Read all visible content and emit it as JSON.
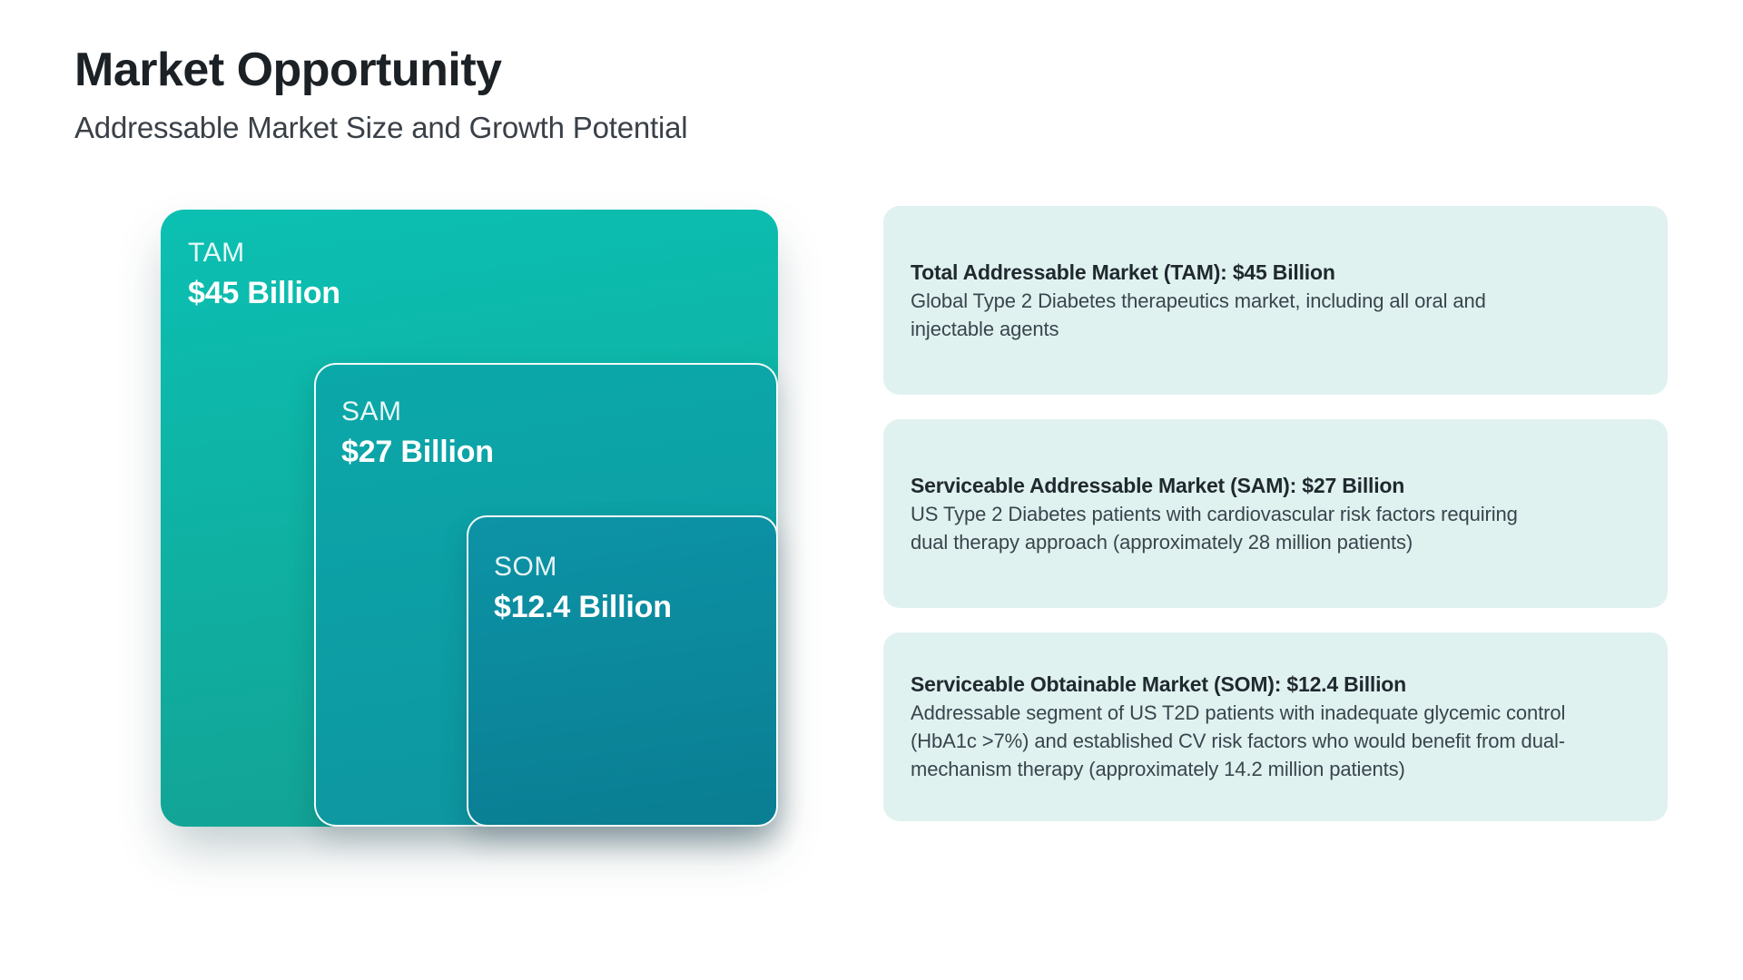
{
  "header": {
    "title": "Market Opportunity",
    "subtitle": "Addressable Market Size and Growth Potential"
  },
  "colors": {
    "tam_top": "#0bc0b2",
    "tam_bottom": "#13a193",
    "sam_top": "#0ba8a9",
    "sam_bottom": "#0e95a0",
    "som_top": "#0d93a6",
    "som_bottom": "#0a7d92",
    "card_bg": "#e0f2f0"
  },
  "chart_data": {
    "type": "nested-squares",
    "title": "Market Opportunity",
    "subtitle": "Addressable Market Size and Growth Potential",
    "unit": "USD billions",
    "legend_position": "right",
    "segments": [
      {
        "label": "TAM",
        "name": "Total Addressable Market",
        "value": 45,
        "value_label": "$45 Billion"
      },
      {
        "label": "SAM",
        "name": "Serviceable Addressable Market",
        "value": 27,
        "value_label": "$27 Billion"
      },
      {
        "label": "SOM",
        "name": "Serviceable Obtainable Market",
        "value": 12.4,
        "value_label": "$12.4 Billion"
      }
    ]
  },
  "cards": [
    {
      "heading": "Total Addressable Market (TAM): $45 Billion",
      "body": "Global Type 2 Diabetes therapeutics market, including all oral and\ninjectable agents"
    },
    {
      "heading": "Serviceable Addressable Market (SAM): $27 Billion",
      "body": "US Type 2 Diabetes patients with cardiovascular risk factors requiring\ndual therapy approach (approximately 28 million patients)"
    },
    {
      "heading": "Serviceable Obtainable Market (SOM): $12.4 Billion",
      "body": "Addressable segment of US T2D patients with inadequate glycemic control\n(HbA1c >7%) and established CV risk factors who would benefit from dual-\nmechanism therapy (approximately 14.2 million patients)"
    }
  ]
}
